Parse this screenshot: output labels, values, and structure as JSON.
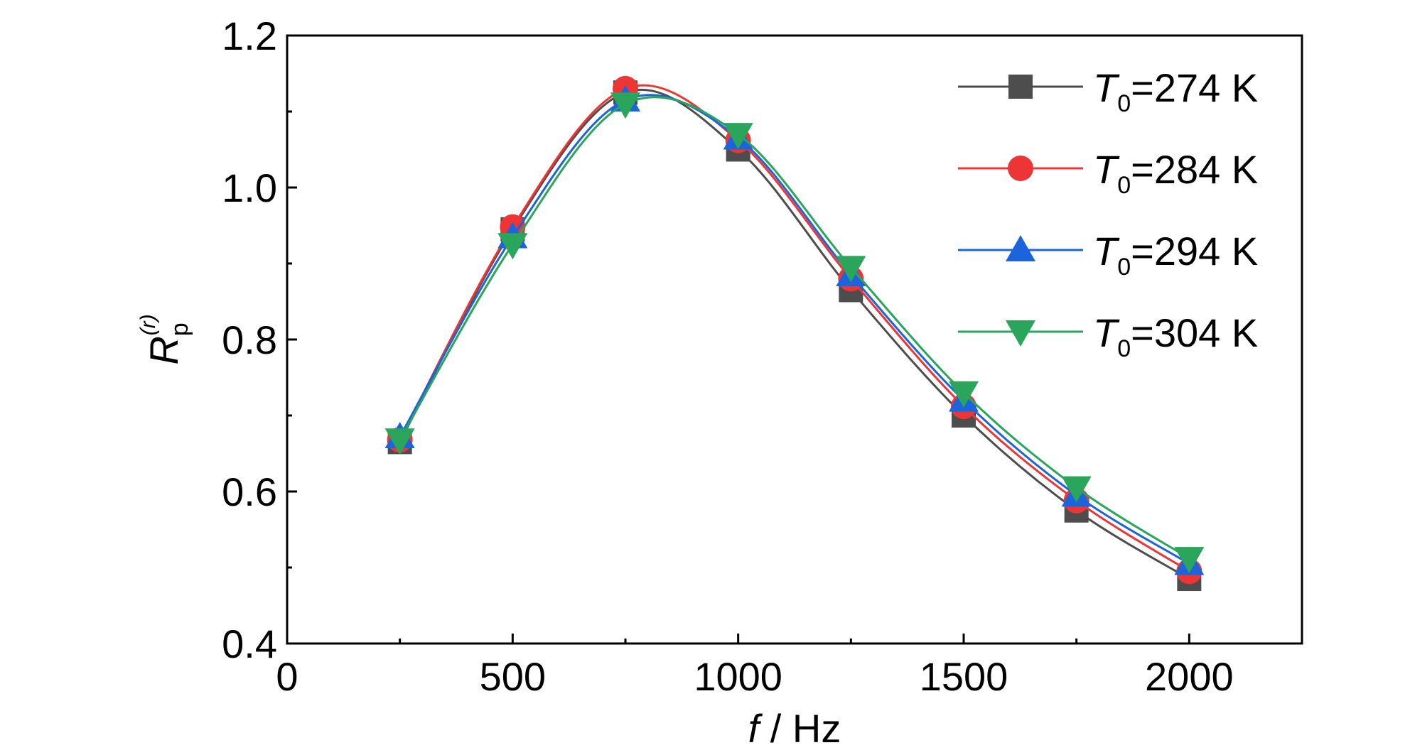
{
  "chart_data": {
    "type": "line",
    "xlabel": {
      "symbol": "f",
      "unit": " / Hz"
    },
    "ylabel": {
      "base": "R",
      "sub": "p",
      "sup": "(r)"
    },
    "xlim": [
      0,
      2250
    ],
    "ylim": [
      0.4,
      1.2
    ],
    "x_ticks": [
      0,
      500,
      1000,
      1500,
      2000
    ],
    "x_tick_labels": [
      "0",
      "500",
      "1000",
      "1500",
      "2000"
    ],
    "y_ticks": [
      0.4,
      0.6,
      0.8,
      1.0,
      1.2
    ],
    "y_tick_labels": [
      "0.4",
      "0.6",
      "0.8",
      "1.0",
      "1.2"
    ],
    "x": [
      250,
      500,
      750,
      1000,
      1250,
      1500,
      1750,
      2000
    ],
    "legend_position": "top-right",
    "grid": false,
    "series": [
      {
        "name_symbol": "T",
        "name_sub": "0",
        "name_rest": "=274 K",
        "color": "#4d4d4d",
        "marker": "square",
        "values": [
          0.665,
          0.945,
          1.125,
          1.05,
          0.865,
          0.7,
          0.575,
          0.485
        ]
      },
      {
        "name_symbol": "T",
        "name_sub": "0",
        "name_rest": "=284 K",
        "color": "#ee3535",
        "marker": "circle",
        "values": [
          0.668,
          0.948,
          1.13,
          1.062,
          0.88,
          0.712,
          0.588,
          0.495
        ]
      },
      {
        "name_symbol": "T",
        "name_sub": "0",
        "name_rest": "=294 K",
        "color": "#1c64dc",
        "marker": "triangle-up",
        "values": [
          0.672,
          0.935,
          1.115,
          1.065,
          0.885,
          0.72,
          0.595,
          0.505
        ]
      },
      {
        "name_symbol": "T",
        "name_sub": "0",
        "name_rest": "=304 K",
        "color": "#2aa55b",
        "marker": "triangle-down",
        "values": [
          0.668,
          0.925,
          1.11,
          1.07,
          0.895,
          0.73,
          0.605,
          0.512
        ]
      }
    ]
  }
}
